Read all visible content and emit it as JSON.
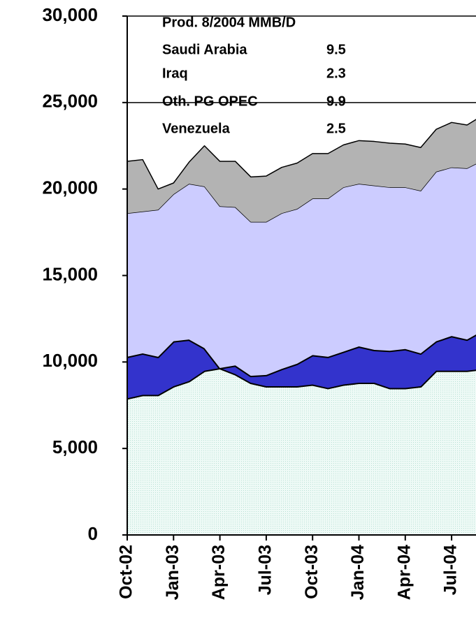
{
  "chart_data": {
    "type": "stacked_area",
    "categories": [
      "Oct-02",
      null,
      null,
      "Jan-03",
      null,
      null,
      "Apr-03",
      null,
      null,
      "Jul-03",
      null,
      null,
      "Oct-03",
      null,
      null,
      "Jan-04",
      null,
      null,
      "Apr-04",
      null,
      null,
      "Jul-04",
      null,
      null
    ],
    "series": [
      {
        "name": "Saudi Arabia",
        "color": "#e6f7f2",
        "annotation_value": 9.5,
        "values": [
          7900,
          8100,
          8100,
          8600,
          8900,
          9500,
          9650,
          9300,
          8800,
          8600,
          8600,
          8600,
          8700,
          8500,
          8700,
          8800,
          8800,
          8500,
          8500,
          8600,
          9500,
          9500,
          9500,
          9600
        ]
      },
      {
        "name": "Iraq",
        "color": "#3333cc",
        "annotation_value": 2.3,
        "values": [
          2400,
          2400,
          2200,
          2600,
          2400,
          1300,
          0,
          500,
          400,
          650,
          1000,
          1300,
          1700,
          1800,
          1900,
          2100,
          1900,
          2150,
          2250,
          1900,
          1700,
          2000,
          1800,
          2200
        ]
      },
      {
        "name": "Oth. PG OPEC",
        "color": "#ccccff",
        "annotation_value": 9.9,
        "values": [
          8300,
          8200,
          8500,
          8500,
          9000,
          9350,
          9350,
          9150,
          8900,
          8850,
          9000,
          8950,
          9050,
          9150,
          9500,
          9400,
          9500,
          9450,
          9350,
          9400,
          9800,
          9750,
          9900,
          9850
        ]
      },
      {
        "name": "Venezuela",
        "color": "#b3b3b3",
        "annotation_value": 2.5,
        "values": [
          3000,
          3000,
          1200,
          650,
          1250,
          2350,
          2600,
          2650,
          2600,
          2650,
          2650,
          2650,
          2600,
          2600,
          2450,
          2500,
          2550,
          2550,
          2500,
          2500,
          2450,
          2600,
          2500,
          2600
        ]
      }
    ],
    "annotation_title": "Prod. 8/2004 MMB/D",
    "ylim": [
      0,
      30000
    ],
    "yticks": [
      0,
      {
        "value": 5000,
        "label": "5,000"
      },
      {
        "value": 10000,
        "label": "10,000"
      },
      {
        "value": 15000,
        "label": "15,000"
      },
      {
        "value": 20000,
        "label": "20,000"
      },
      {
        "value": 25000,
        "label": "25,000"
      },
      {
        "value": 30000,
        "label": "30,000"
      }
    ],
    "grid": true
  }
}
